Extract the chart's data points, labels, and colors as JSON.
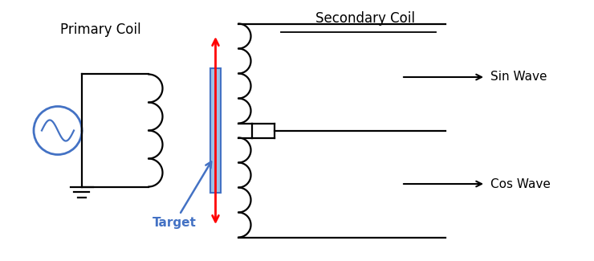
{
  "bg_color": "#ffffff",
  "primary_coil_label": "Primary Coil",
  "secondary_coil_label": "Secondary Coil",
  "target_label": "Target",
  "sin_wave_label": "Sin Wave",
  "cos_wave_label": "Cos Wave",
  "red_arrow_color": "#ff0000",
  "blue_arrow_color": "#4472C4",
  "coil_color": "#000000",
  "line_color": "#000000",
  "target_color": "#9DC3E6",
  "target_edge_color": "#4472C4",
  "circle_color": "#4472C4",
  "fig_width": 7.4,
  "fig_height": 3.25,
  "dpi": 100
}
